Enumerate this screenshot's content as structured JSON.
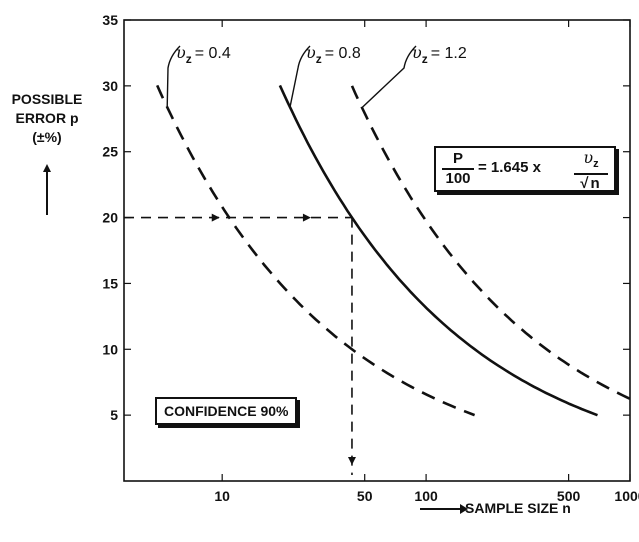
{
  "ylabel_lines": [
    "POSSIBLE",
    "ERROR p",
    "(±%)"
  ],
  "xlabel": "SAMPLE SIZE n",
  "confidence_label": "CONFIDENCE 90%",
  "formula": {
    "lhs_num": "P",
    "lhs_den": "100",
    "middle": "= 1.645  x",
    "rhs_num_symbol": "υ",
    "rhs_num_sub": "z",
    "rhs_den": "n"
  },
  "chart_data": {
    "type": "line",
    "title": "",
    "xlabel": "SAMPLE SIZE n",
    "ylabel": "POSSIBLE ERROR p (±%)",
    "xscale": "log",
    "xlim": [
      3.3,
      1000
    ],
    "ylim": [
      0,
      35
    ],
    "x_ticks": [
      10,
      50,
      100,
      500,
      1000
    ],
    "x_tick_labels": [
      "10",
      "50",
      "100",
      "500",
      "1000"
    ],
    "y_ticks": [
      5,
      10,
      15,
      20,
      25,
      30,
      35
    ],
    "y_tick_labels": [
      "5",
      "10",
      "15",
      "20",
      "25",
      "30",
      "35"
    ],
    "grid": false,
    "formula": "P/100 = 1.645 x v_z / sqrt(n)",
    "series": [
      {
        "name": "υz = 0.4",
        "label_prefix": "υ",
        "label_sub": "z",
        "label_value": "= 0.4",
        "style": "dashed",
        "k": 65.8,
        "x_range": [
          4.8,
          173
        ]
      },
      {
        "name": "υz = 0.8",
        "label_prefix": "υ",
        "label_sub": "z",
        "label_value": "= 0.8",
        "style": "solid",
        "k": 131.6,
        "x_range": [
          19.2,
          693
        ]
      },
      {
        "name": "υz = 1.2",
        "label_prefix": "υ",
        "label_sub": "z",
        "label_value": "= 1.2",
        "style": "dashed",
        "k": 197.4,
        "x_range": [
          43.3,
          1000
        ]
      }
    ],
    "annotation": {
      "type": "reading_guide",
      "series": "υz = 0.8",
      "y": 20,
      "x": 43.3
    }
  }
}
